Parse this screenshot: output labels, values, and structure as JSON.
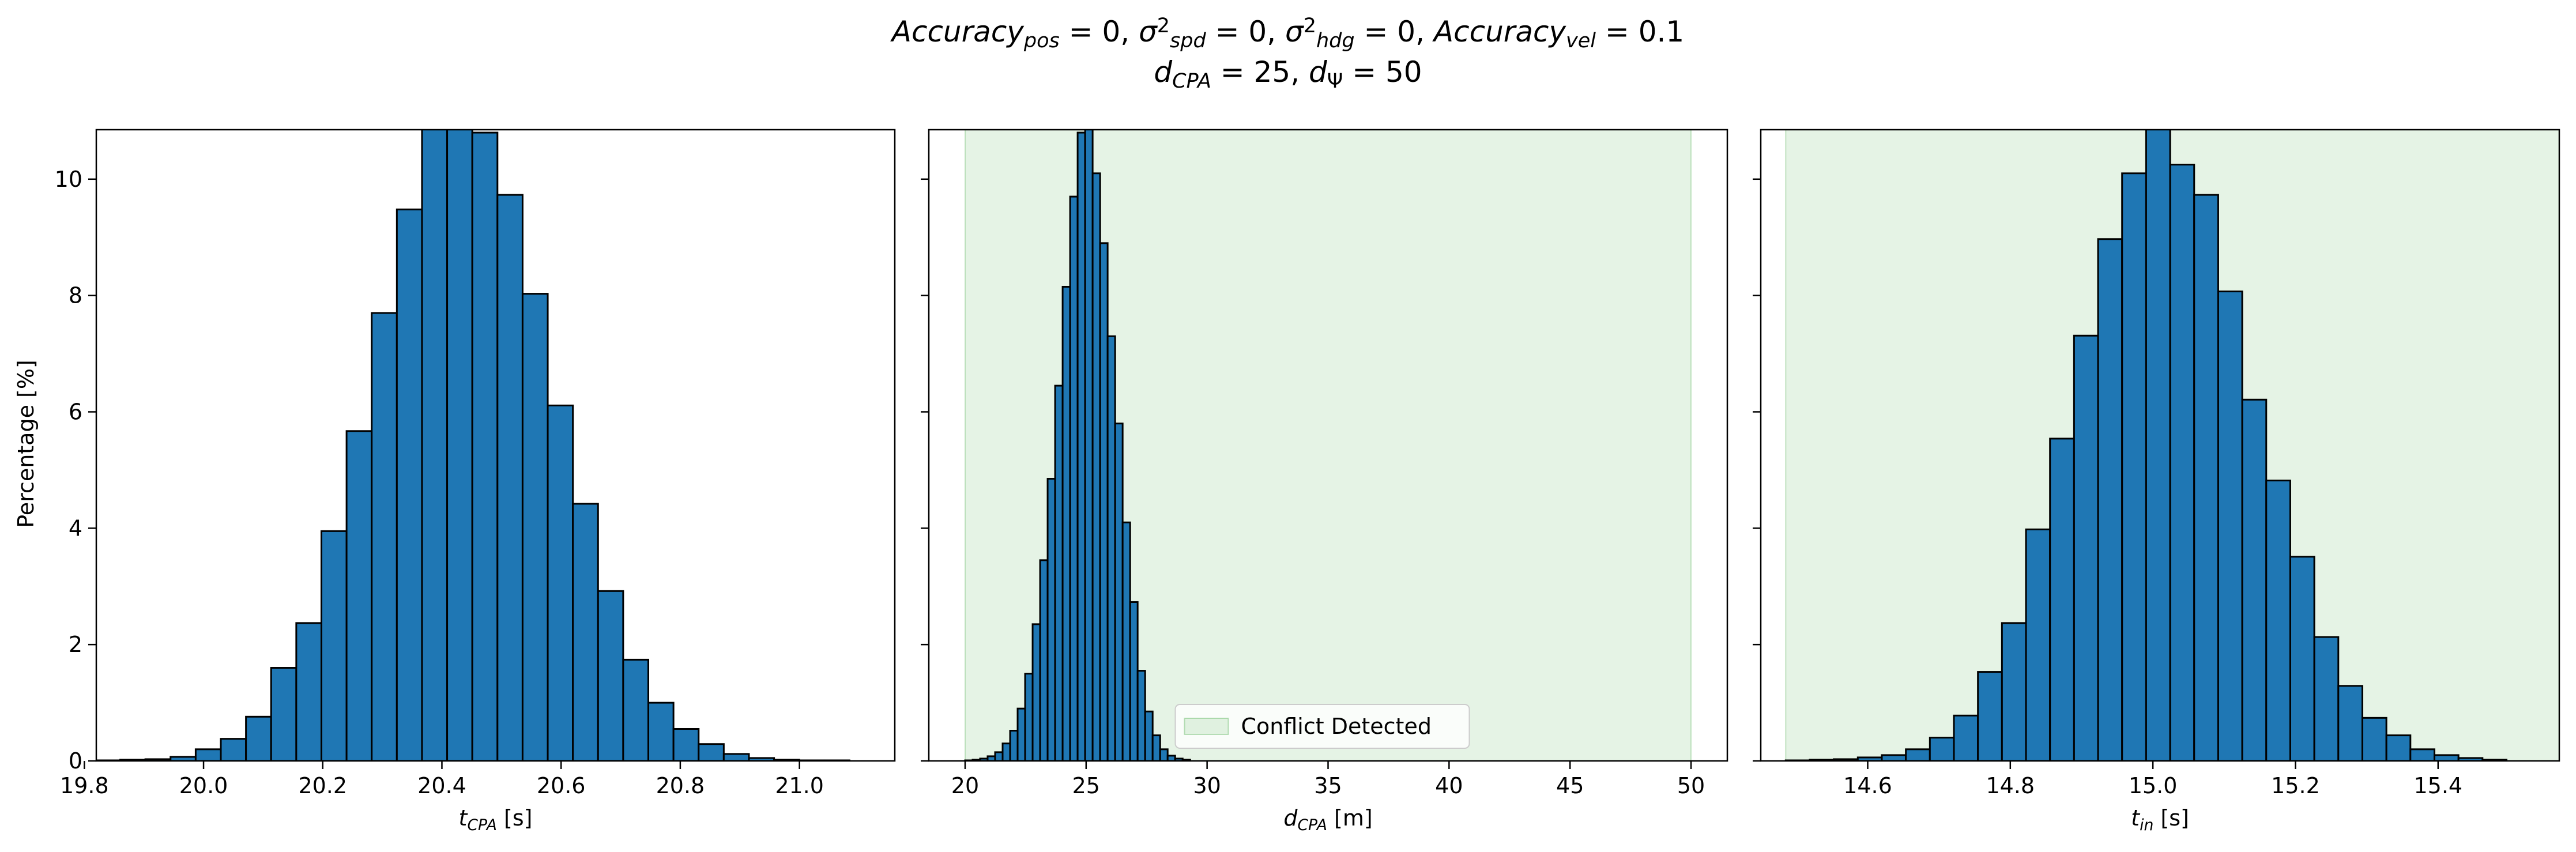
{
  "figure": {
    "title_line1_parts": [
      {
        "t": "Accuracy",
        "it": true
      },
      {
        "t": "pos",
        "it": true,
        "sub": true
      },
      {
        "t": " = 0, "
      },
      {
        "t": "σ",
        "it": true
      },
      {
        "t": "2",
        "sup": true
      },
      {
        "t": "spd",
        "it": true,
        "sub": true
      },
      {
        "t": " = 0, "
      },
      {
        "t": "σ",
        "it": true
      },
      {
        "t": "2",
        "sup": true
      },
      {
        "t": "hdg",
        "it": true,
        "sub": true
      },
      {
        "t": " = 0, "
      },
      {
        "t": "Accuracy",
        "it": true
      },
      {
        "t": "vel",
        "it": true,
        "sub": true
      },
      {
        "t": " = 0.1"
      }
    ],
    "title_line2_parts": [
      {
        "t": "d",
        "it": true
      },
      {
        "t": "CPA",
        "it": true,
        "sub": true
      },
      {
        "t": " = 25, "
      },
      {
        "t": "d",
        "it": true
      },
      {
        "t": "Ψ",
        "sub": true
      },
      {
        "t": " = 50"
      }
    ],
    "shared_ylabel": "Percentage [%]",
    "colors": {
      "bar_fill": "#1f77b4",
      "bar_edge": "#000000",
      "conflict_fill": "#2ca02c",
      "conflict_alpha": 0.12
    }
  },
  "chart_data": [
    {
      "type": "bar",
      "name": "panel-tcpa",
      "xlabel_parts": [
        {
          "t": "t",
          "it": true
        },
        {
          "t": "CPA",
          "it": true,
          "sub": true
        },
        {
          "t": " [s]"
        }
      ],
      "ylabel": "Percentage [%]",
      "xlim": [
        19.82,
        21.16
      ],
      "ylim": [
        0,
        10.85
      ],
      "xticks": [
        19.8,
        20.0,
        20.2,
        20.4,
        20.6,
        20.8,
        21.0
      ],
      "xtick_labels": [
        "19.8",
        "20.0",
        "20.2",
        "20.4",
        "20.6",
        "20.8",
        "21.0"
      ],
      "yticks": [
        0,
        2,
        4,
        6,
        8,
        10
      ],
      "ytick_labels": [
        "0",
        "2",
        "4",
        "6",
        "8",
        "10"
      ],
      "show_ytick_labels": true,
      "bin_start": 19.818,
      "bin_width": 0.0422,
      "values": [
        0.01,
        0.02,
        0.03,
        0.07,
        0.2,
        0.38,
        0.76,
        1.6,
        2.37,
        3.95,
        5.67,
        7.7,
        9.48,
        11.2,
        11.9,
        10.8,
        9.73,
        8.03,
        6.11,
        4.42,
        2.92,
        1.74,
        1.0,
        0.55,
        0.29,
        0.12,
        0.05,
        0.02,
        0.01,
        0.01
      ],
      "shaded_region": null,
      "legend": null
    },
    {
      "type": "bar",
      "name": "panel-dcpa",
      "xlabel_parts": [
        {
          "t": "d",
          "it": true
        },
        {
          "t": "CPA",
          "it": true,
          "sub": true
        },
        {
          "t": " [m]"
        }
      ],
      "ylabel": "",
      "xlim": [
        18.5,
        51.5
      ],
      "ylim": [
        0,
        10.85
      ],
      "xticks": [
        20,
        25,
        30,
        35,
        40,
        45,
        50
      ],
      "xtick_labels": [
        "20",
        "25",
        "30",
        "35",
        "40",
        "45",
        "50"
      ],
      "yticks": [
        0,
        2,
        4,
        6,
        8,
        10
      ],
      "ytick_labels": [
        "",
        "",
        "",
        "",
        "",
        ""
      ],
      "show_ytick_labels": false,
      "bin_start": 20.0,
      "bin_width": 0.31,
      "values": [
        0.01,
        0.02,
        0.04,
        0.08,
        0.15,
        0.3,
        0.52,
        0.9,
        1.5,
        2.35,
        3.45,
        4.85,
        6.45,
        8.15,
        9.7,
        10.8,
        11.0,
        10.1,
        8.9,
        7.3,
        5.8,
        4.1,
        2.73,
        1.55,
        0.85,
        0.44,
        0.2,
        0.09,
        0.04,
        0.02
      ],
      "shaded_region": [
        20,
        50
      ],
      "legend": {
        "label": "Conflict Detected",
        "placement": "lower-center"
      }
    },
    {
      "type": "bar",
      "name": "panel-tin",
      "xlabel_parts": [
        {
          "t": "t",
          "it": true
        },
        {
          "t": "in",
          "it": true,
          "sub": true
        },
        {
          "t": " [s]"
        }
      ],
      "ylabel": "",
      "xlim": [
        14.45,
        15.57
      ],
      "ylim": [
        0,
        10.85
      ],
      "xticks": [
        14.6,
        14.8,
        15.0,
        15.2,
        15.4
      ],
      "xtick_labels": [
        "14.6",
        "14.8",
        "15.0",
        "15.2",
        "15.4"
      ],
      "yticks": [
        0,
        2,
        4,
        6,
        8,
        10
      ],
      "ytick_labels": [
        "",
        "",
        "",
        "",
        "",
        ""
      ],
      "show_ytick_labels": false,
      "bin_start": 14.485,
      "bin_width": 0.0337,
      "values": [
        0.01,
        0.02,
        0.03,
        0.06,
        0.1,
        0.2,
        0.4,
        0.78,
        1.53,
        2.37,
        3.98,
        5.54,
        7.31,
        8.97,
        10.1,
        11.3,
        10.25,
        9.73,
        8.07,
        6.21,
        4.82,
        3.51,
        2.13,
        1.29,
        0.74,
        0.44,
        0.2,
        0.1,
        0.05,
        0.02
      ],
      "shaded_region": [
        14.485,
        15.57
      ],
      "legend": null
    }
  ]
}
